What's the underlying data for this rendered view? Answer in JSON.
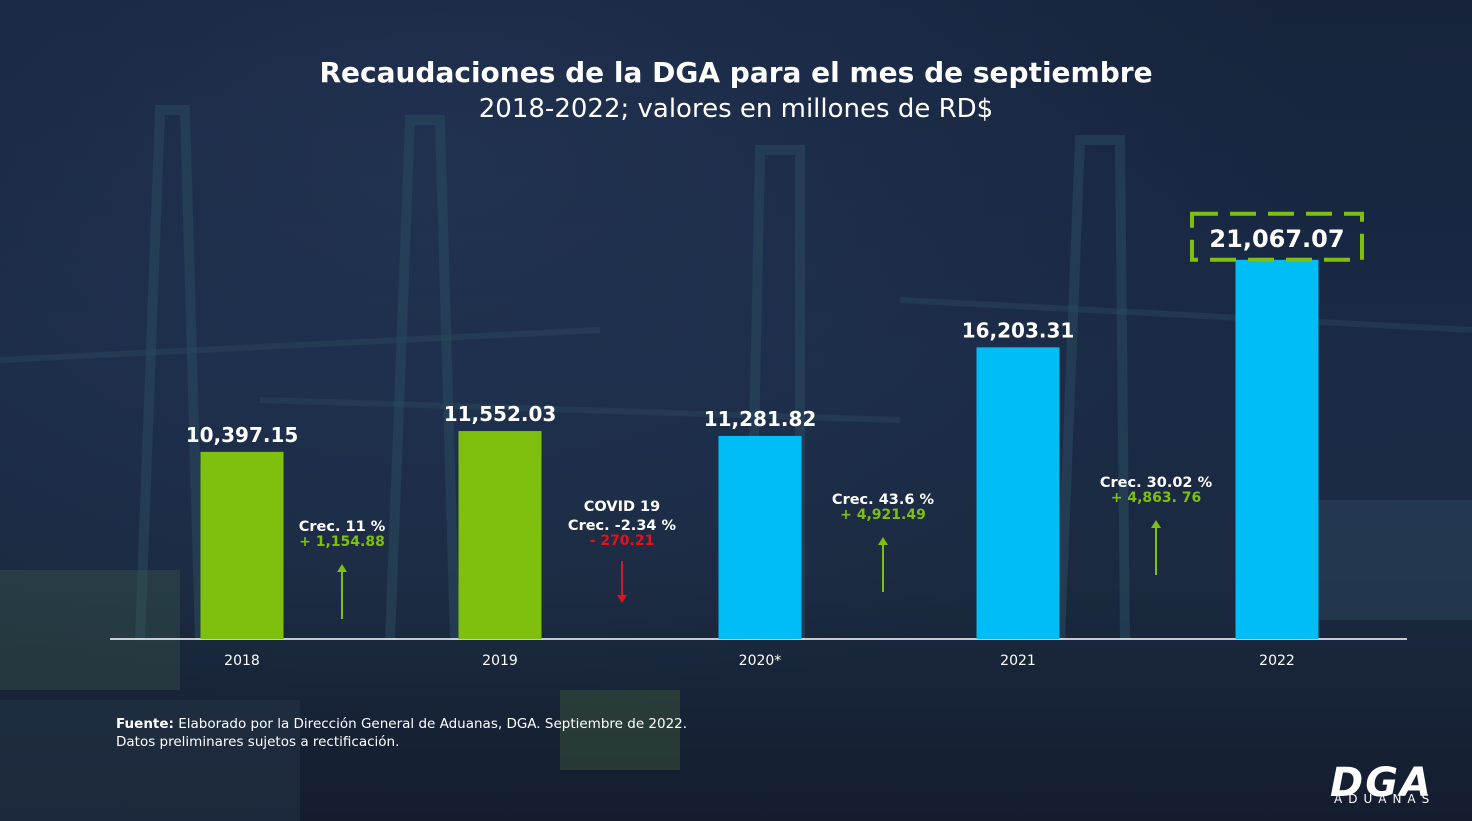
{
  "header": {
    "title": "Recaudaciones de la DGA para el mes de septiembre",
    "subtitle": "2018-2022; valores en millones de RD$"
  },
  "chart_data": {
    "type": "bar",
    "categories": [
      "2018",
      "2019",
      "2020*",
      "2021",
      "2022"
    ],
    "values": [
      10397.15,
      11552.03,
      11281.82,
      16203.31,
      21067.07
    ],
    "value_labels": [
      "10,397.15",
      "11,552.03",
      "11,281.82",
      "16,203.31",
      "21,067.07"
    ],
    "bar_colors": [
      "#7fbf0e",
      "#7fbf0e",
      "#00bdf5",
      "#00bdf5",
      "#00bdf5"
    ],
    "highlight_index": 4,
    "highlight_color": "#7fbf0e",
    "axis_color": "#ffffff",
    "annotations": [
      {
        "lines": [
          "Crec. 11 %"
        ],
        "delta": "+ 1,154.88",
        "direction": "up",
        "color": "#7fbf0e"
      },
      {
        "lines": [
          "COVID  19",
          "Crec. -2.34  %"
        ],
        "delta": "- 270.21",
        "direction": "down",
        "color": "#e3121b"
      },
      {
        "lines": [
          "Crec. 43.6 %"
        ],
        "delta": "+ 4,921.49",
        "direction": "up",
        "color": "#7fbf0e"
      },
      {
        "lines": [
          "Crec. 30.02 %"
        ],
        "delta": "+ 4,863. 76",
        "direction": "up",
        "color": "#7fbf0e"
      }
    ]
  },
  "footer": {
    "source_label": "Fuente:",
    "source_text": " Elaborado por la Dirección General de Aduanas, DGA. Septiembre de 2022.",
    "note": "Datos preliminares sujetos a rectificación."
  },
  "logo": {
    "mark": "DGA",
    "text": "ADUANAS"
  }
}
